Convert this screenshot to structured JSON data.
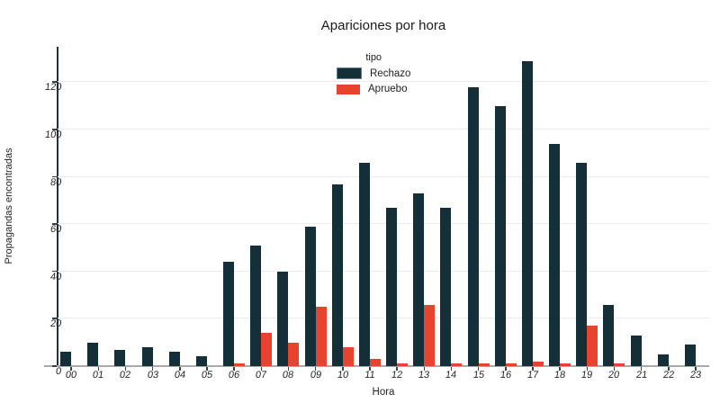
{
  "chart_data": {
    "type": "bar",
    "title": "Apariciones por hora",
    "xlabel": "Hora",
    "ylabel": "Propagandas encontradas",
    "categories": [
      "00",
      "01",
      "02",
      "03",
      "04",
      "05",
      "06",
      "07",
      "08",
      "09",
      "10",
      "11",
      "12",
      "13",
      "14",
      "15",
      "16",
      "17",
      "18",
      "19",
      "20",
      "21",
      "22",
      "23"
    ],
    "series": [
      {
        "name": "Rechazo",
        "color": "#142f37",
        "values": [
          6,
          10,
          7,
          8,
          6,
          4,
          44,
          51,
          40,
          59,
          77,
          86,
          67,
          73,
          67,
          118,
          110,
          129,
          94,
          86,
          26,
          13,
          5,
          9
        ]
      },
      {
        "name": "Apruebo",
        "color": "#e8432e",
        "values": [
          0,
          0,
          0,
          0,
          0,
          0,
          1,
          14,
          10,
          25,
          8,
          3,
          1,
          26,
          1,
          1,
          1,
          2,
          1,
          17,
          1,
          0,
          0,
          0
        ]
      }
    ],
    "legend": {
      "title": "tipo",
      "position": "upper center"
    },
    "ylim": [
      0,
      135
    ],
    "yticks": [
      0,
      20,
      40,
      60,
      80,
      100,
      120
    ],
    "grid": "horizontal",
    "colors": {
      "grid": "#ececec",
      "axis_text": "#262626",
      "left_spine": "#22343a",
      "bottom_spine": "#a9a9a9"
    }
  }
}
